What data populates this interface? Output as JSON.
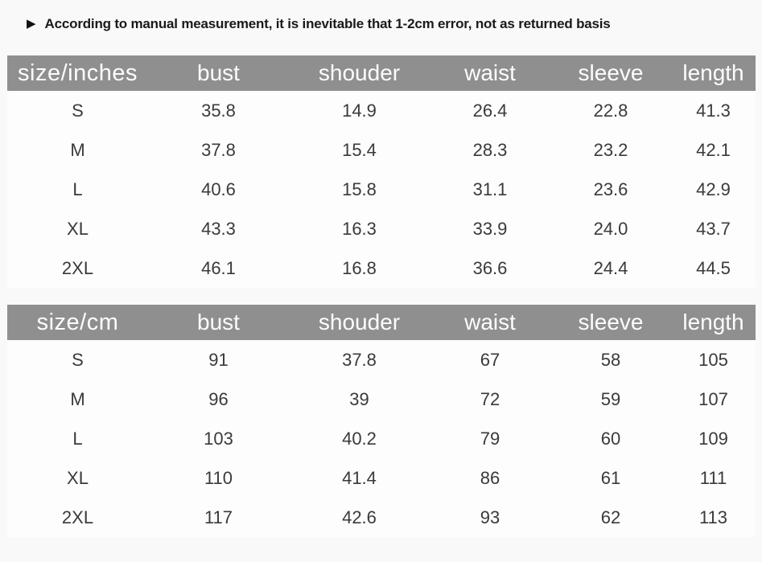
{
  "notice": {
    "icon": "play-arrow-icon",
    "arrow_glyph": "▶",
    "text": "According to manual measurement, it is inevitable that 1-2cm error, not as returned basis"
  },
  "colors": {
    "page_bg": "#f9f9f9",
    "table_header_bg": "#8f8f8f",
    "table_header_text": "#fdfdfd",
    "body_text": "#3a3a3a",
    "notice_text": "#1a1a1a",
    "table_body_bg": "#fdfdfd"
  },
  "chart_data": [
    {
      "type": "table",
      "unit_label": "size/inches",
      "columns": [
        "bust",
        "shouder",
        "waist",
        "sleeve",
        "length"
      ],
      "rows": [
        {
          "size": "S",
          "values": [
            "35.8",
            "14.9",
            "26.4",
            "22.8",
            "41.3"
          ]
        },
        {
          "size": "M",
          "values": [
            "37.8",
            "15.4",
            "28.3",
            "23.2",
            "42.1"
          ]
        },
        {
          "size": "L",
          "values": [
            "40.6",
            "15.8",
            "31.1",
            "23.6",
            "42.9"
          ]
        },
        {
          "size": "XL",
          "values": [
            "43.3",
            "16.3",
            "33.9",
            "24.0",
            "43.7"
          ]
        },
        {
          "size": "2XL",
          "values": [
            "46.1",
            "16.8",
            "36.6",
            "24.4",
            "44.5"
          ]
        }
      ]
    },
    {
      "type": "table",
      "unit_label": "size/cm",
      "columns": [
        "bust",
        "shouder",
        "waist",
        "sleeve",
        "length"
      ],
      "rows": [
        {
          "size": "S",
          "values": [
            "91",
            "37.8",
            "67",
            "58",
            "105"
          ]
        },
        {
          "size": "M",
          "values": [
            "96",
            "39",
            "72",
            "59",
            "107"
          ]
        },
        {
          "size": "L",
          "values": [
            "103",
            "40.2",
            "79",
            "60",
            "109"
          ]
        },
        {
          "size": "XL",
          "values": [
            "110",
            "41.4",
            "86",
            "61",
            "111"
          ]
        },
        {
          "size": "2XL",
          "values": [
            "117",
            "42.6",
            "93",
            "62",
            "113"
          ]
        }
      ]
    }
  ]
}
